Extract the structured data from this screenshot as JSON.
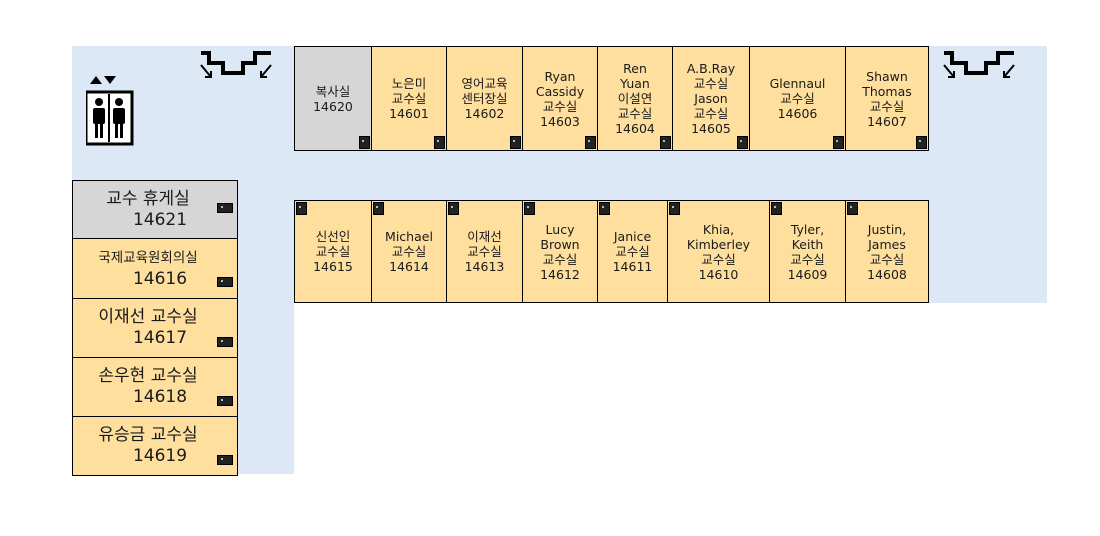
{
  "elevator": {
    "icon": "elevator-icon",
    "arrows": "▲▼"
  },
  "stairs": {
    "icon": "stairs-icon"
  },
  "top_rooms": [
    {
      "name": "room-14620",
      "lines": [
        "복사실",
        "14620"
      ],
      "gray": true
    },
    {
      "name": "room-14601",
      "lines": [
        "노은미",
        "교수실",
        "14601"
      ]
    },
    {
      "name": "room-14602",
      "lines": [
        "영어교육",
        "센터장실",
        "14602"
      ]
    },
    {
      "name": "room-14603",
      "lines": [
        "Ryan",
        "Cassidy",
        "교수실",
        "14603"
      ]
    },
    {
      "name": "room-14604",
      "lines": [
        "Ren",
        "Yuan",
        "이설연",
        "교수실",
        "14604"
      ]
    },
    {
      "name": "room-14605",
      "lines": [
        "A.B.Ray",
        "교수실",
        "Jason",
        "교수실",
        "14605"
      ]
    },
    {
      "name": "room-14606",
      "lines": [
        "Glennaul",
        "교수실",
        "14606"
      ]
    },
    {
      "name": "room-14607",
      "lines": [
        "Shawn",
        "Thomas",
        "교수실",
        "14607"
      ]
    }
  ],
  "bottom_rooms": [
    {
      "name": "room-14615",
      "lines": [
        "신선인",
        "교수실",
        "14615"
      ]
    },
    {
      "name": "room-14614",
      "lines": [
        "Michael",
        "교수실",
        "14614"
      ]
    },
    {
      "name": "room-14613",
      "lines": [
        "이재선",
        "교수실",
        "14613"
      ]
    },
    {
      "name": "room-14612",
      "lines": [
        "Lucy",
        "Brown",
        "교수실",
        "14612"
      ]
    },
    {
      "name": "room-14611",
      "lines": [
        "Janice",
        "교수실",
        "14611"
      ]
    },
    {
      "name": "room-14610",
      "lines": [
        "Khia,",
        "Kimberley",
        "교수실",
        "14610"
      ]
    },
    {
      "name": "room-14609",
      "lines": [
        "Tyler,",
        "Keith",
        "교수실",
        "14609"
      ]
    },
    {
      "name": "room-14608",
      "lines": [
        "Justin,",
        "James",
        "교수실",
        "14608"
      ]
    }
  ],
  "left_rooms": [
    {
      "name": "room-14621",
      "l1": "교수 휴게실",
      "l2": "14621",
      "gray": true
    },
    {
      "name": "room-14616",
      "l1": "국제교육원회의실",
      "l2": "14616",
      "small": true
    },
    {
      "name": "room-14617",
      "l1": "이재선 교수실",
      "l2": "14617"
    },
    {
      "name": "room-14618",
      "l1": "손우현 교수실",
      "l2": "14618"
    },
    {
      "name": "room-14619",
      "l1": "유승금 교수실",
      "l2": "14619"
    }
  ],
  "colors": {
    "room": "#ffdf9e",
    "gray_room": "#d6d6d6",
    "corridor": "#dce8f5"
  }
}
